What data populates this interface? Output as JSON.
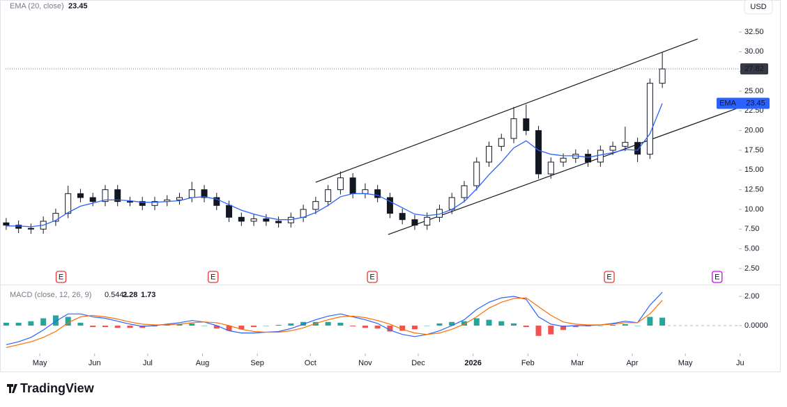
{
  "chart_data": {
    "type": "candlestick",
    "currency": "USD",
    "x": [
      -19,
      -12,
      -5,
      2,
      9,
      16,
      23,
      30,
      37,
      44,
      51,
      58,
      65,
      72,
      79,
      86,
      93,
      100,
      107,
      114,
      121,
      128,
      135,
      142,
      149,
      156,
      163,
      170,
      177,
      184,
      191,
      198,
      205,
      212,
      219,
      226,
      233,
      240,
      247,
      254,
      261,
      268,
      275,
      282,
      289,
      296,
      303,
      310,
      317,
      324,
      331,
      338,
      345,
      352
    ],
    "xlim": [
      -22.5,
      395.3
    ],
    "xticks": [
      {
        "value": 0,
        "label": "May"
      },
      {
        "value": 31,
        "label": "Jun"
      },
      {
        "value": 61,
        "label": "Jul"
      },
      {
        "value": 92,
        "label": "Aug"
      },
      {
        "value": 123,
        "label": "Sep"
      },
      {
        "value": 153,
        "label": "Oct"
      },
      {
        "value": 184,
        "label": "Nov"
      },
      {
        "value": 214,
        "label": "Dec"
      },
      {
        "value": 245,
        "label": "2026"
      },
      {
        "value": 276,
        "label": "Feb"
      },
      {
        "value": 304,
        "label": "Mar"
      },
      {
        "value": 335,
        "label": "Apr"
      },
      {
        "value": 365,
        "label": "May"
      },
      {
        "value": 396,
        "label": "Ju"
      }
    ],
    "open": [
      8.3,
      8.0,
      7.6,
      7.5,
      8.5,
      9.5,
      12.0,
      11.5,
      11.0,
      12.5,
      11.0,
      11.0,
      10.5,
      11.0,
      11.2,
      11.5,
      12.5,
      11.5,
      10.5,
      9.0,
      8.5,
      8.8,
      8.5,
      8.3,
      9.0,
      10.0,
      11.0,
      12.5,
      14.0,
      12.0,
      12.5,
      11.5,
      9.5,
      8.7,
      8.0,
      9.0,
      10.0,
      11.5,
      13.0,
      16.0,
      18.0,
      19.0,
      21.5,
      20.0,
      14.5,
      16.0,
      16.5,
      17.0,
      16.0,
      17.5,
      18.0,
      18.5,
      17.0,
      26.0
    ],
    "high": [
      8.9,
      8.6,
      8.2,
      9.1,
      10.1,
      13.0,
      12.6,
      12.1,
      13.1,
      13.1,
      11.6,
      11.6,
      11.6,
      11.8,
      12.1,
      13.5,
      13.1,
      12.1,
      11.1,
      9.6,
      9.4,
      9.4,
      9.1,
      9.6,
      10.6,
      11.6,
      13.1,
      14.8,
      14.6,
      13.3,
      13.1,
      12.1,
      10.1,
      9.3,
      9.6,
      10.6,
      12.1,
      13.6,
      16.6,
      18.6,
      19.6,
      23.0,
      23.3,
      20.6,
      16.6,
      17.1,
      17.6,
      17.6,
      18.1,
      18.6,
      20.5,
      19.1,
      26.6,
      29.9
    ],
    "low": [
      7.4,
      7.0,
      6.9,
      6.9,
      7.9,
      8.9,
      10.9,
      10.4,
      10.4,
      10.4,
      10.4,
      9.9,
      9.9,
      10.4,
      10.6,
      10.9,
      10.9,
      9.9,
      8.4,
      7.9,
      7.9,
      7.9,
      7.7,
      7.7,
      8.4,
      9.4,
      10.4,
      11.9,
      11.4,
      11.4,
      10.9,
      8.9,
      8.1,
      7.4,
      7.4,
      8.4,
      9.4,
      10.9,
      12.4,
      15.4,
      17.4,
      18.4,
      19.4,
      13.9,
      13.9,
      15.4,
      15.9,
      15.4,
      15.4,
      16.9,
      17.4,
      16.0,
      16.4,
      25.4
    ],
    "close": [
      8.0,
      7.6,
      7.5,
      8.5,
      9.5,
      12.0,
      11.5,
      11.0,
      12.5,
      11.0,
      11.0,
      10.5,
      11.0,
      11.2,
      11.5,
      12.5,
      11.5,
      10.5,
      9.0,
      8.5,
      8.8,
      8.5,
      8.3,
      9.0,
      10.0,
      11.0,
      12.5,
      14.0,
      12.0,
      12.5,
      11.5,
      9.5,
      8.7,
      8.0,
      9.0,
      10.0,
      11.5,
      13.0,
      16.0,
      18.0,
      19.0,
      21.5,
      20.0,
      14.5,
      16.0,
      16.5,
      17.0,
      16.0,
      17.5,
      18.0,
      18.5,
      17.0,
      26.0,
      27.82
    ],
    "up_color": "#ffffff",
    "down_color": "#131722",
    "ylim": [
      0.82,
      36.56
    ],
    "yticks": [
      {
        "value": 2.5,
        "label": "2.50"
      },
      {
        "value": 5,
        "label": "5.00"
      },
      {
        "value": 7.5,
        "label": "7.50"
      },
      {
        "value": 10,
        "label": "10.00"
      },
      {
        "value": 12.5,
        "label": "12.50"
      },
      {
        "value": 15,
        "label": "15.00"
      },
      {
        "value": 17.5,
        "label": "17.50"
      },
      {
        "value": 20,
        "label": "20.00"
      },
      {
        "value": 22.5,
        "label": "22.50"
      },
      {
        "value": 25,
        "label": "25.00"
      },
      {
        "value": 27.5,
        "label": "27.50"
      },
      {
        "value": 30,
        "label": "30.00"
      },
      {
        "value": 32.5,
        "label": "32.50"
      }
    ],
    "ema": {
      "name": "EMA (20, close)",
      "short_name": "EMA",
      "color": "#2962ff",
      "values": [
        7.9,
        7.9,
        7.8,
        8.0,
        8.6,
        9.6,
        10.4,
        10.8,
        11.2,
        11.2,
        11.1,
        10.9,
        10.9,
        11.0,
        11.1,
        11.5,
        11.6,
        11.3,
        10.6,
        9.9,
        9.4,
        9.0,
        8.7,
        8.7,
        9.0,
        9.6,
        10.5,
        11.6,
        12.0,
        12.0,
        11.8,
        11.0,
        10.2,
        9.4,
        9.2,
        9.4,
        10.0,
        11.0,
        12.6,
        14.4,
        16.0,
        17.8,
        18.7,
        17.5,
        17.0,
        16.8,
        16.8,
        16.6,
        16.9,
        17.2,
        17.6,
        17.5,
        19.6,
        23.45
      ]
    },
    "trendlines": [
      {
        "x": [
          156,
          372
        ],
        "y": [
          13.44,
          31.62
        ]
      },
      {
        "x": [
          197,
          395
        ],
        "y": [
          6.82,
          22.88
        ]
      }
    ],
    "earnings": {
      "label": "E",
      "x": [
        12,
        98,
        188,
        322,
        383
      ],
      "colors": [
        "#e53935",
        "#e53935",
        "#e53935",
        "#e53935",
        "#d500f9"
      ]
    },
    "macd": {
      "name": "MACD (close, 12, 26, 9)",
      "ylim": [
        -1.9,
        2.76
      ],
      "yticks": [
        {
          "value": 2,
          "label": "2.00"
        },
        {
          "value": 0,
          "label": "0.0000"
        }
      ],
      "histogram": {
        "pos_color": "#26a69a",
        "neg_color": "#ef5350",
        "label_color": "#80cbc4",
        "values": [
          0.2,
          0.2,
          0.3,
          0.5,
          0.7,
          0.6,
          0.2,
          -0.1,
          -0.1,
          -0.15,
          -0.15,
          -0.15,
          -0.05,
          0.05,
          0.1,
          0.15,
          0.0,
          -0.2,
          -0.35,
          -0.25,
          -0.1,
          0.0,
          0.05,
          0.15,
          0.25,
          0.25,
          0.25,
          0.2,
          -0.05,
          -0.15,
          -0.2,
          -0.4,
          -0.35,
          -0.25,
          0.0,
          0.15,
          0.25,
          0.3,
          0.5,
          0.4,
          0.3,
          0.15,
          -0.1,
          -0.7,
          -0.6,
          -0.3,
          -0.1,
          -0.05,
          0.0,
          0.05,
          0.1,
          0.0,
          0.6,
          0.5441
        ]
      },
      "macd": {
        "color": "#2962ff",
        "values": [
          -1.3,
          -1.1,
          -0.8,
          -0.3,
          0.3,
          0.8,
          0.8,
          0.6,
          0.5,
          0.3,
          0.1,
          -0.05,
          0.0,
          0.1,
          0.2,
          0.35,
          0.25,
          0.0,
          -0.35,
          -0.5,
          -0.5,
          -0.45,
          -0.4,
          -0.2,
          0.1,
          0.4,
          0.65,
          0.8,
          0.6,
          0.4,
          0.15,
          -0.3,
          -0.6,
          -0.75,
          -0.6,
          -0.35,
          0.0,
          0.4,
          1.1,
          1.6,
          1.9,
          2.0,
          1.8,
          0.6,
          0.1,
          -0.05,
          0.0,
          0.0,
          0.05,
          0.15,
          0.3,
          0.2,
          1.4,
          2.28
        ]
      },
      "signal": {
        "color": "#ff6d00",
        "values": [
          -1.5,
          -1.3,
          -1.1,
          -0.8,
          -0.4,
          0.2,
          0.6,
          0.7,
          0.6,
          0.45,
          0.25,
          0.1,
          0.05,
          0.05,
          0.1,
          0.2,
          0.25,
          0.2,
          0.0,
          -0.25,
          -0.4,
          -0.45,
          -0.45,
          -0.35,
          -0.15,
          0.15,
          0.4,
          0.6,
          0.65,
          0.55,
          0.35,
          0.1,
          -0.25,
          -0.5,
          -0.6,
          -0.5,
          -0.25,
          0.1,
          0.6,
          1.2,
          1.6,
          1.85,
          1.9,
          1.3,
          0.7,
          0.25,
          0.1,
          0.05,
          0.05,
          0.1,
          0.2,
          0.2,
          0.8,
          1.73
        ]
      }
    }
  },
  "footer": {
    "logo": "TradingView"
  }
}
